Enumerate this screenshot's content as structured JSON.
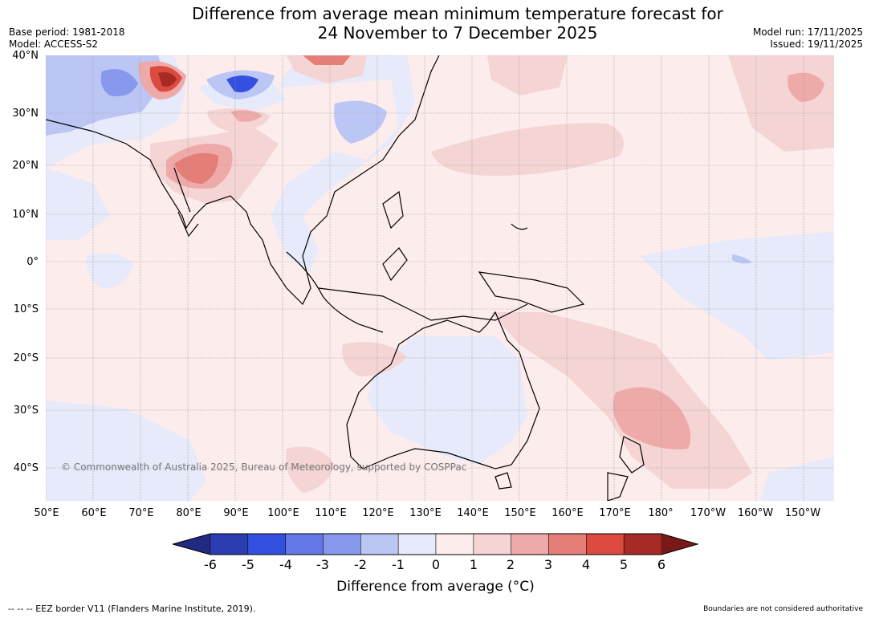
{
  "title": {
    "line1": "Difference from average mean minimum temperature forecast for",
    "line2": "24 November to 7 December 2025"
  },
  "meta": {
    "base_period": "Base period: 1981-2018",
    "model": "Model: ACCESS-S2",
    "model_run": "Model run: 17/11/2025",
    "issued": "Issued: 19/11/2025"
  },
  "axes": {
    "lat_labels": [
      "40°N",
      "30°N",
      "20°N",
      "10°N",
      "0°",
      "10°S",
      "20°S",
      "30°S",
      "40°S"
    ],
    "lon_labels": [
      "50°E",
      "60°E",
      "70°E",
      "80°E",
      "90°E",
      "100°E",
      "110°E",
      "120°E",
      "130°E",
      "140°E",
      "150°E",
      "160°E",
      "170°E",
      "180°",
      "170°W",
      "160°W",
      "150°W"
    ]
  },
  "colorbar": {
    "title": "Difference from average (°C)",
    "tick_labels": [
      "-6",
      "-5",
      "-4",
      "-3",
      "-2",
      "-1",
      "0",
      "1",
      "2",
      "3",
      "4",
      "5",
      "6"
    ],
    "colors": [
      "#2b3db0",
      "#3450e0",
      "#6378e6",
      "#8898ec",
      "#bcc6f4",
      "#e6eafa",
      "#fcecec",
      "#f5d4d4",
      "#eeaaa8",
      "#e67e78",
      "#dc4a40",
      "#a82a24"
    ],
    "under_color": "#1f2a80",
    "over_color": "#7a1a18"
  },
  "copyright": "© Commonwealth of Australia 2025, Bureau of Meteorology, supported by COSPPac",
  "footer": {
    "eez_legend": "--  --  -- EEZ border V11 (Flanders Marine Institute, 2019).",
    "disclaimer": "Boundaries are not considered authoritative"
  }
}
